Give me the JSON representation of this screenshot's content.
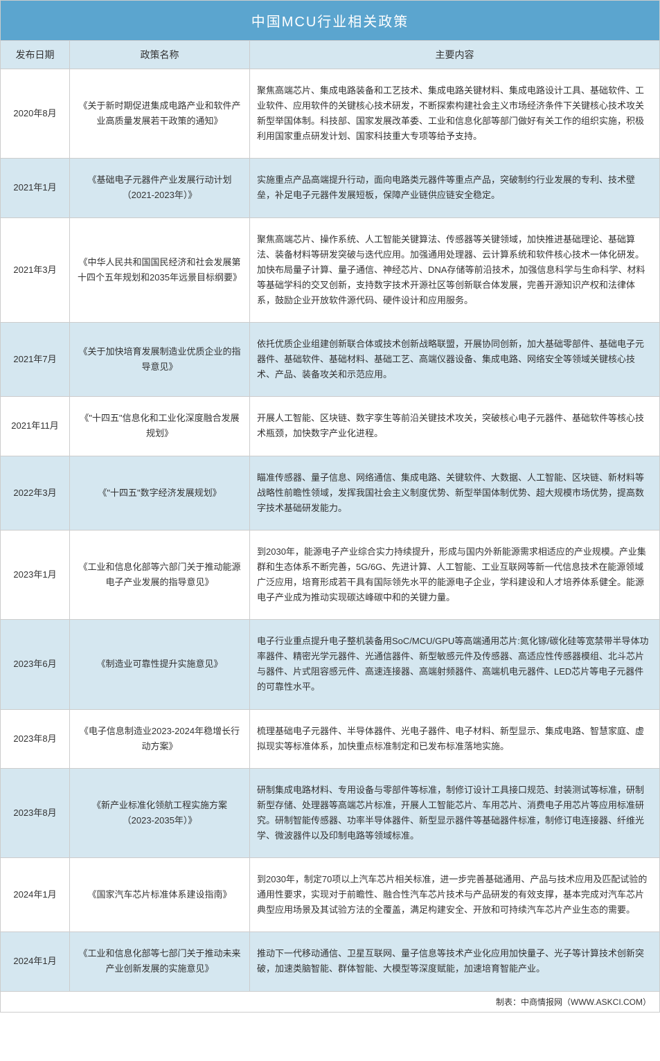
{
  "title": "中国MCU行业相关政策",
  "columns": {
    "date": "发布日期",
    "name": "政策名称",
    "content": "主要内容"
  },
  "colors": {
    "title_bg": "#5ba5cf",
    "title_text": "#ffffff",
    "header_bg": "#d5e7f0",
    "row_even_bg": "#ffffff",
    "row_odd_bg": "#d5e7f0",
    "border": "#cccccc",
    "text": "#333333"
  },
  "column_widths": {
    "date": 100,
    "name": 260
  },
  "rows": [
    {
      "date": "2020年8月",
      "name": "《关于新时期促进集成电路产业和软件产业高质量发展若干政策的通知》",
      "content": "聚焦高端芯片、集成电路装备和工艺技术、集成电路关键材料、集成电路设计工具、基础软件、工业软件、应用软件的关键核心技术研发，不断探索构建社会主义市场经济条件下关键核心技术攻关新型举国体制。科技部、国家发展改革委、工业和信息化部等部门做好有关工作的组织实施，积极利用国家重点研发计划、国家科技重大专项等给予支持。"
    },
    {
      "date": "2021年1月",
      "name": "《基础电子元器件产业发展行动计划（2021-2023年）》",
      "content": "实施重点产品高端提升行动，面向电路类元器件等重点产品，突破制约行业发展的专利、技术壁垒，补足电子元器件发展短板，保障产业链供应链安全稳定。"
    },
    {
      "date": "2021年3月",
      "name": "《中华人民共和国国民经济和社会发展第十四个五年规划和2035年远景目标纲要》",
      "content": "聚焦高端芯片、操作系统、人工智能关键算法、传感器等关键领域，加快推进基础理论、基础算法、装备材料等研发突破与迭代应用。加强通用处理器、云计算系统和软件核心技术一体化研发。加快布局量子计算、量子通信、神经芯片、DNA存储等前沿技术，加强信息科学与生命科学、材料等基础学科的交叉创新，支持数字技术开源社区等创新联合体发展，完善开源知识产权和法律体系，鼓励企业开放软件源代码、硬件设计和应用服务。"
    },
    {
      "date": "2021年7月",
      "name": "《关于加快培育发展制造业优质企业的指导意见》",
      "content": "依托优质企业组建创新联合体或技术创新战略联盟，开展协同创新，加大基础零部件、基础电子元器件、基础软件、基础材料、基础工艺、高端仪器设备、集成电路、网络安全等领域关键核心技术、产品、装备攻关和示范应用。"
    },
    {
      "date": "2021年11月",
      "name": "《\"十四五\"信息化和工业化深度融合发展规划》",
      "content": "开展人工智能、区块链、数字孪生等前沿关键技术攻关，突破核心电子元器件、基础软件等核心技术瓶颈，加快数字产业化进程。"
    },
    {
      "date": "2022年3月",
      "name": "《\"十四五\"数字经济发展规划》",
      "content": "瞄准传感器、量子信息、网络通信、集成电路、关键软件、大数据、人工智能、区块链、新材料等战略性前瞻性领域，发挥我国社会主义制度优势、新型举国体制优势、超大规模市场优势，提高数字技术基础研发能力。"
    },
    {
      "date": "2023年1月",
      "name": "《工业和信息化部等六部门关于推动能源电子产业发展的指导意见》",
      "content": "到2030年，能源电子产业综合实力持续提升，形成与国内外新能源需求相适应的产业规模。产业集群和生态体系不断完善，5G/6G、先进计算、人工智能、工业互联网等新一代信息技术在能源领域广泛应用，培育形成若干具有国际领先水平的能源电子企业，学科建设和人才培养体系健全。能源电子产业成为推动实现碳达峰碳中和的关键力量。"
    },
    {
      "date": "2023年6月",
      "name": "《制造业可靠性提升实施意见》",
      "content": "电子行业重点提升电子整机装备用SoC/MCU/GPU等高端通用芯片:氮化镓/碳化硅等宽禁带半导体功率器件、精密光学元器件、光通信器件、新型敏感元件及传感器、高适应性传感器模组、北斗芯片与器件、片式阻容感元件、高速连接器、高端射频器件、高端机电元器件、LED芯片等电子元器件的可靠性水平。"
    },
    {
      "date": "2023年8月",
      "name": "《电子信息制造业2023-2024年稳增长行动方案》",
      "content": "梳理基础电子元器件、半导体器件、光电子器件、电子材料、新型显示、集成电路、智慧家庭、虚拟现实等标准体系，加快重点标准制定和已发布标准落地实施。"
    },
    {
      "date": "2023年8月",
      "name": "《新产业标准化领航工程实施方案（2023-2035年）》",
      "content": "研制集成电路材料、专用设备与零部件等标准，制修订设计工具接口规范、封装测试等标准，研制新型存储、处理器等高端芯片标准，开展人工智能芯片、车用芯片、消费电子用芯片等应用标准研究。研制智能传感器、功率半导体器件、新型显示器件等基础器件标准，制修订电连接器、纤维光学、微波器件以及印制电路等领域标准。"
    },
    {
      "date": "2024年1月",
      "name": "《国家汽车芯片标准体系建设指南》",
      "content": "到2030年，制定70项以上汽车芯片相关标准，进一步完善基础通用、产品与技术应用及匹配试验的通用性要求，实现对于前瞻性、融合性汽车芯片技术与产品研发的有效支撑，基本完成对汽车芯片典型应用场景及其试验方法的全覆盖，满足构建安全、开放和可持续汽车芯片产业生态的需要。"
    },
    {
      "date": "2024年1月",
      "name": "《工业和信息化部等七部门关于推动未来产业创新发展的实施意见》",
      "content": "推动下一代移动通信、卫星互联网、量子信息等技术产业化应用加快量子、光子等计算技术创新突破，加速类脑智能、群体智能、大模型等深度赋能，加速培育智能产业。"
    }
  ],
  "footer": "制表：中商情报网（WWW.ASKCI.COM）"
}
